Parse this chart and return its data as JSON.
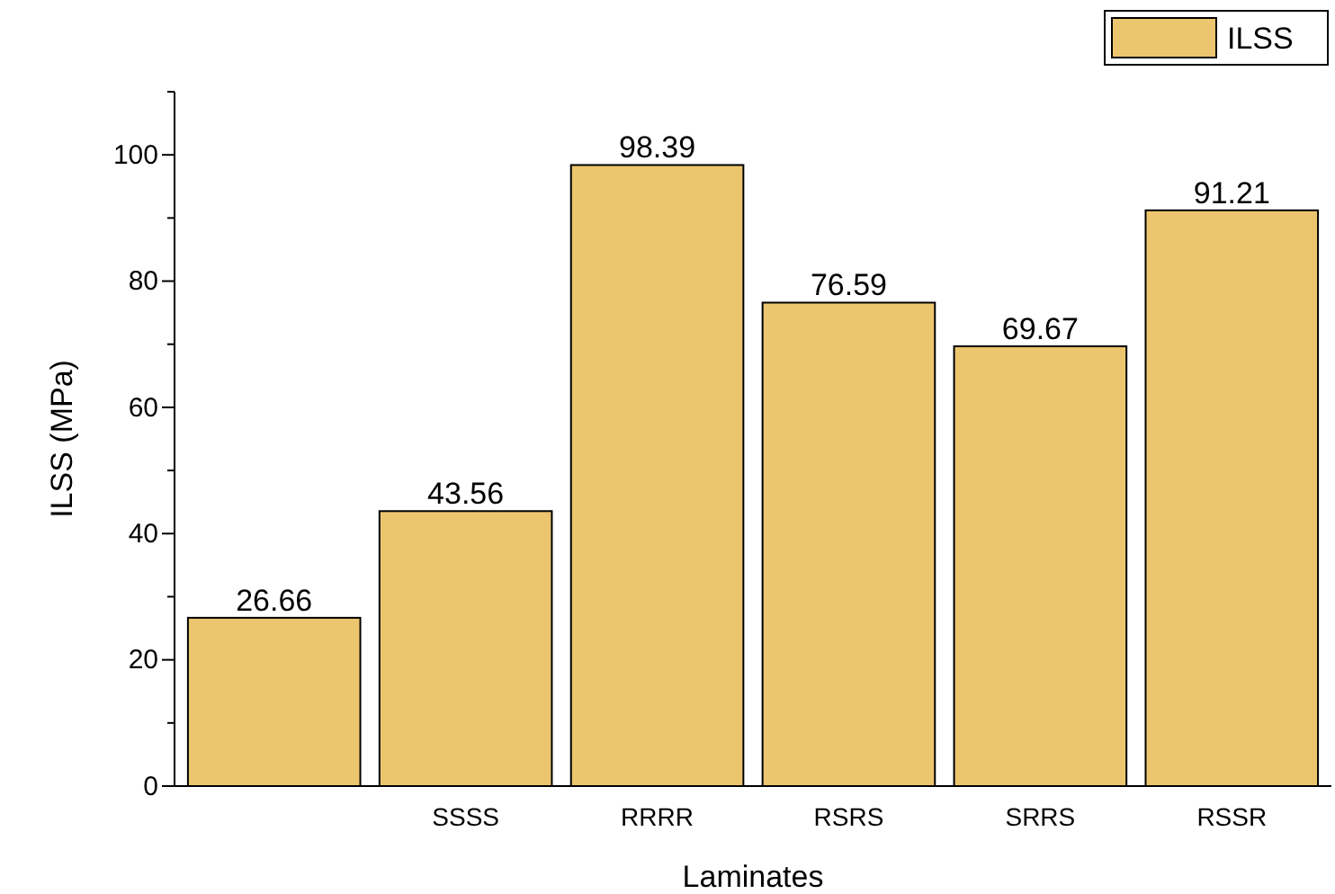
{
  "chart_data": {
    "type": "bar",
    "xlabel": "Laminates",
    "ylabel": "ILSS (MPa)",
    "categories": [
      null,
      "SSSS",
      "RRRR",
      "RSRS",
      "SRRS",
      "RSSR"
    ],
    "series": [
      {
        "name": "ILSS",
        "color": "#ecc56f",
        "values": [
          26.66,
          43.56,
          98.39,
          76.59,
          69.67,
          91.21
        ]
      }
    ],
    "ylim": [
      0,
      110
    ],
    "yticks": [
      0,
      {
        "value": 10,
        "label": null
      },
      20,
      {
        "value": 30,
        "label": null
      },
      40,
      {
        "value": 50,
        "label": null
      },
      60,
      {
        "value": 70,
        "label": null
      },
      80,
      {
        "value": 90,
        "label": null
      },
      100,
      {
        "value": 110,
        "label": null
      }
    ],
    "data_labels": true,
    "legend": "top right",
    "grid": false
  }
}
